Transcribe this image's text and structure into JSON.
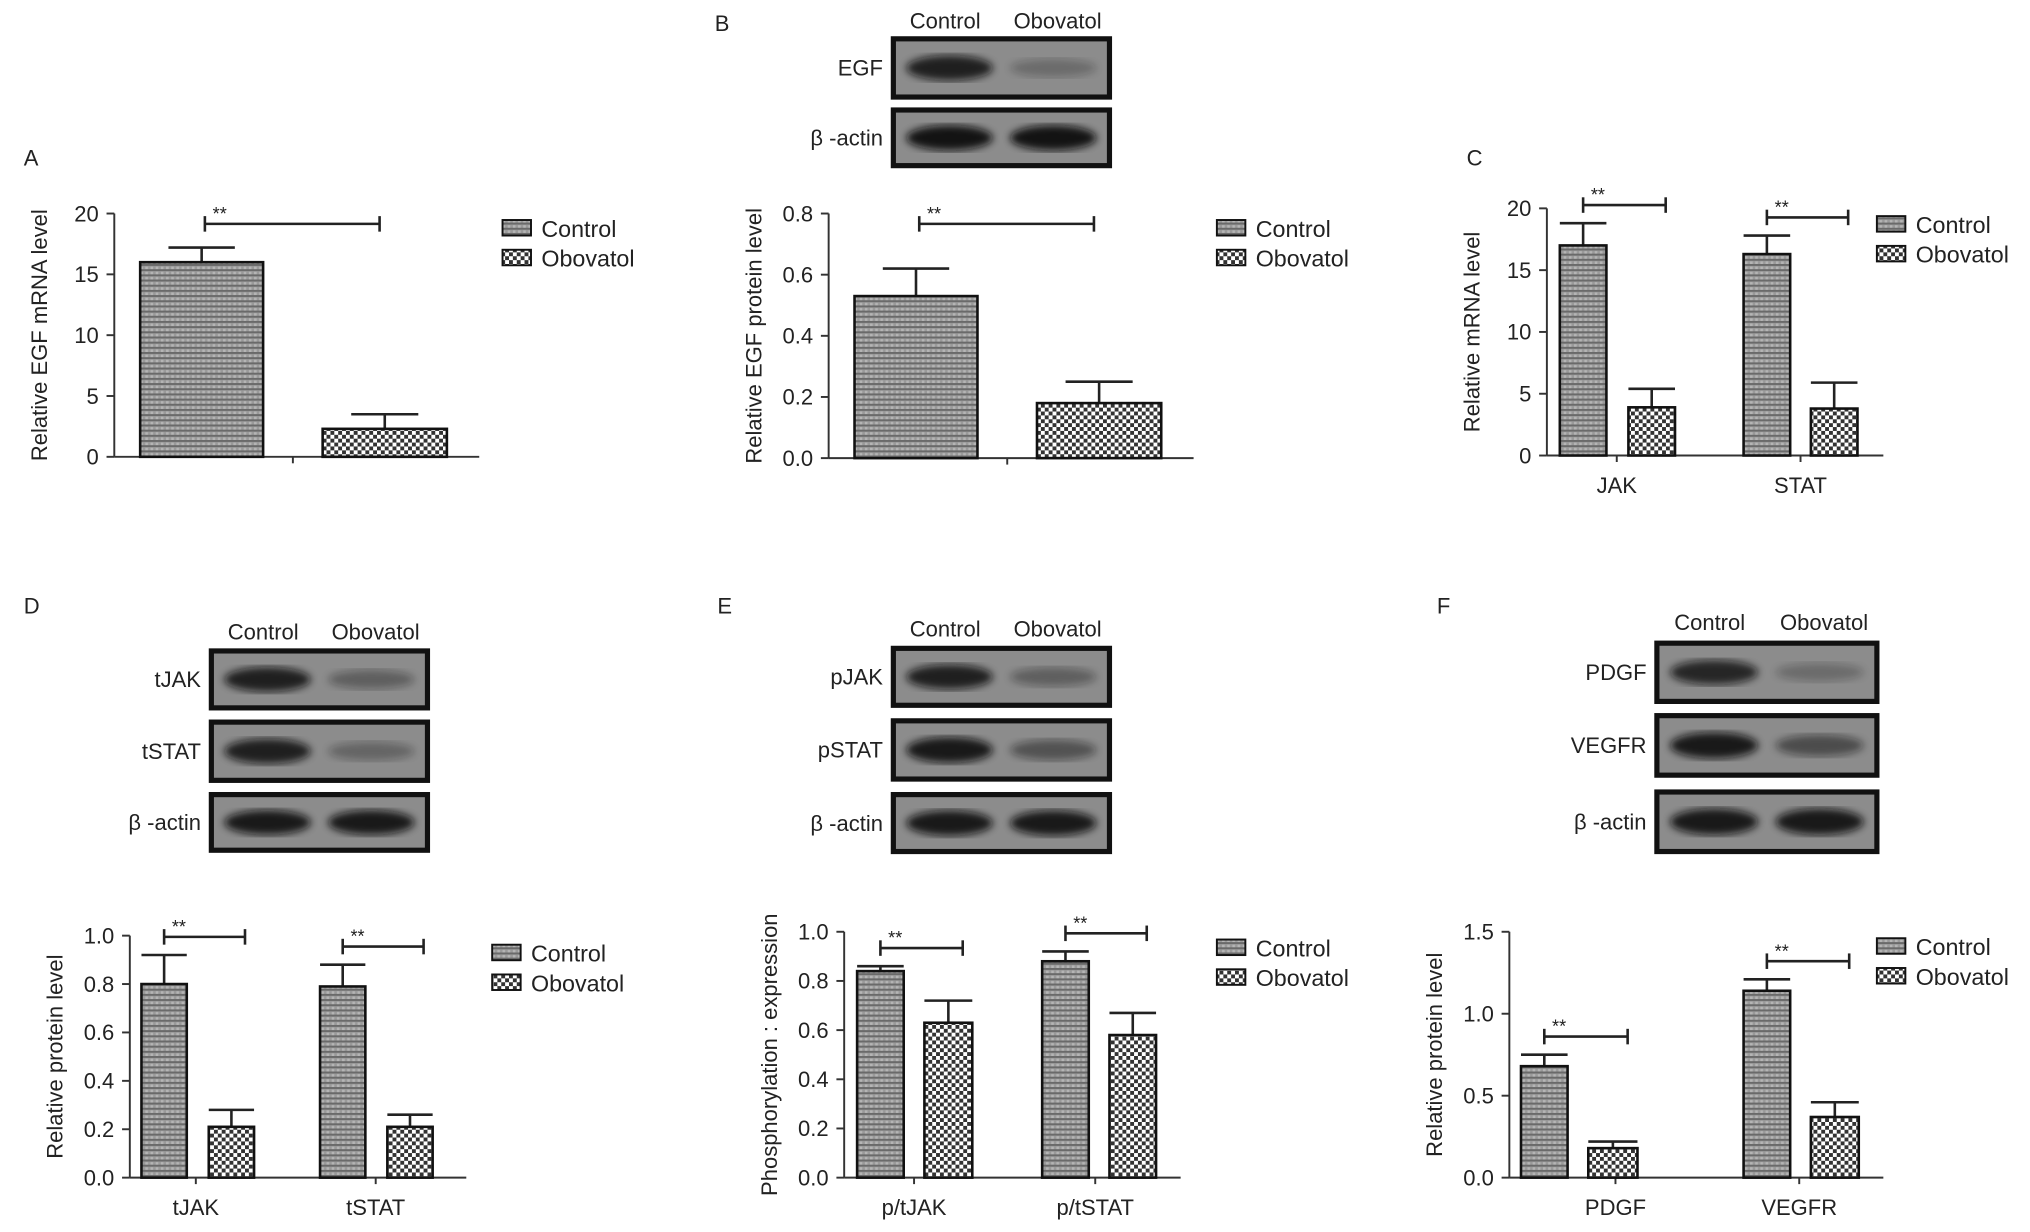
{
  "legend": {
    "control": "Control",
    "obovatol": "Obovatol"
  },
  "blots": [
    {
      "panel": "B",
      "headers": [
        "Control",
        "Obovatol"
      ],
      "rows": [
        {
          "label": "EGF",
          "control": 0.85,
          "obovatol": 0.25
        },
        {
          "label": "β -actin",
          "control": 0.95,
          "obovatol": 0.95
        }
      ]
    },
    {
      "panel": "D",
      "headers": [
        "Control",
        "Obovatol"
      ],
      "rows": [
        {
          "label": "tJAK",
          "control": 0.85,
          "obovatol": 0.35
        },
        {
          "label": "tSTAT",
          "control": 0.85,
          "obovatol": 0.3
        },
        {
          "label": "β -actin",
          "control": 0.9,
          "obovatol": 0.9
        }
      ]
    },
    {
      "panel": "E",
      "headers": [
        "Control",
        "Obovatol"
      ],
      "rows": [
        {
          "label": "pJAK",
          "control": 0.85,
          "obovatol": 0.35
        },
        {
          "label": "pSTAT",
          "control": 0.9,
          "obovatol": 0.45
        },
        {
          "label": "β -actin",
          "control": 0.9,
          "obovatol": 0.9
        }
      ]
    },
    {
      "panel": "F",
      "headers": [
        "Control",
        "Obovatol"
      ],
      "rows": [
        {
          "label": "PDGF",
          "control": 0.8,
          "obovatol": 0.25
        },
        {
          "label": "VEGFR",
          "control": 0.9,
          "obovatol": 0.5
        },
        {
          "label": "β -actin",
          "control": 0.9,
          "obovatol": 0.9
        }
      ]
    }
  ],
  "chart_data": [
    {
      "panel": "A",
      "type": "bar",
      "title": "",
      "xlabel": "",
      "ylabel": "Relative EGF mRNA level",
      "ylim": [
        0,
        20
      ],
      "yticks": [
        "0",
        "5",
        "10",
        "15",
        "20"
      ],
      "categories": [
        ""
      ],
      "series": [
        {
          "name": "Control",
          "values": [
            16.0
          ],
          "error": [
            1.2
          ]
        },
        {
          "name": "Obovatol",
          "values": [
            2.3
          ],
          "error": [
            1.2
          ]
        }
      ],
      "significance": [
        "**"
      ],
      "legend": "right"
    },
    {
      "panel": "B",
      "type": "bar",
      "title": "",
      "xlabel": "",
      "ylabel": "Relative EGF protein level",
      "ylim": [
        0,
        0.8
      ],
      "yticks": [
        "0.0",
        "0.2",
        "0.4",
        "0.6",
        "0.8"
      ],
      "categories": [
        ""
      ],
      "series": [
        {
          "name": "Control",
          "values": [
            0.53
          ],
          "error": [
            0.09
          ]
        },
        {
          "name": "Obovatol",
          "values": [
            0.18
          ],
          "error": [
            0.07
          ]
        }
      ],
      "significance": [
        "**"
      ],
      "legend": "right"
    },
    {
      "panel": "C",
      "type": "bar",
      "title": "",
      "xlabel": "",
      "ylabel": "Relative mRNA level",
      "ylim": [
        0,
        20
      ],
      "yticks": [
        "0",
        "5",
        "10",
        "15",
        "20"
      ],
      "categories": [
        "JAK",
        "STAT"
      ],
      "series": [
        {
          "name": "Control",
          "values": [
            17.0,
            16.3
          ],
          "error": [
            1.8,
            1.5
          ]
        },
        {
          "name": "Obovatol",
          "values": [
            3.9,
            3.8
          ],
          "error": [
            1.5,
            2.1
          ]
        }
      ],
      "significance": [
        "**",
        "**"
      ],
      "legend": "right"
    },
    {
      "panel": "D",
      "type": "bar",
      "title": "",
      "xlabel": "",
      "ylabel": "Relative protein level",
      "ylim": [
        0,
        1.0
      ],
      "yticks": [
        "0.0",
        "0.2",
        "0.4",
        "0.6",
        "0.8",
        "1.0"
      ],
      "categories": [
        "tJAK",
        "tSTAT"
      ],
      "series": [
        {
          "name": "Control",
          "values": [
            0.8,
            0.79
          ],
          "error": [
            0.12,
            0.09
          ]
        },
        {
          "name": "Obovatol",
          "values": [
            0.21,
            0.21
          ],
          "error": [
            0.07,
            0.05
          ]
        }
      ],
      "significance": [
        "**",
        "**"
      ],
      "legend": "right"
    },
    {
      "panel": "E",
      "type": "bar",
      "title": "",
      "xlabel": "",
      "ylabel": "Phosphorylation : expression",
      "ylim": [
        0,
        1.0
      ],
      "yticks": [
        "0.0",
        "0.2",
        "0.4",
        "0.6",
        "0.8",
        "1.0"
      ],
      "categories": [
        "p/tJAK",
        "p/tSTAT"
      ],
      "series": [
        {
          "name": "Control",
          "values": [
            0.84,
            0.88
          ],
          "error": [
            0.02,
            0.04
          ]
        },
        {
          "name": "Obovatol",
          "values": [
            0.63,
            0.58
          ],
          "error": [
            0.09,
            0.09
          ]
        }
      ],
      "significance": [
        "**",
        "**"
      ],
      "legend": "right"
    },
    {
      "panel": "F",
      "type": "bar",
      "title": "",
      "xlabel": "",
      "ylabel": "Relative protein level",
      "ylim": [
        0,
        1.5
      ],
      "yticks": [
        "0.0",
        "0.5",
        "1.0",
        "1.5"
      ],
      "categories": [
        "PDGF",
        "VEGFR"
      ],
      "series": [
        {
          "name": "Control",
          "values": [
            0.68,
            1.14
          ],
          "error": [
            0.07,
            0.07
          ]
        },
        {
          "name": "Obovatol",
          "values": [
            0.18,
            0.37
          ],
          "error": [
            0.04,
            0.09
          ]
        }
      ],
      "significance": [
        "**",
        "**"
      ],
      "legend": "right"
    }
  ]
}
